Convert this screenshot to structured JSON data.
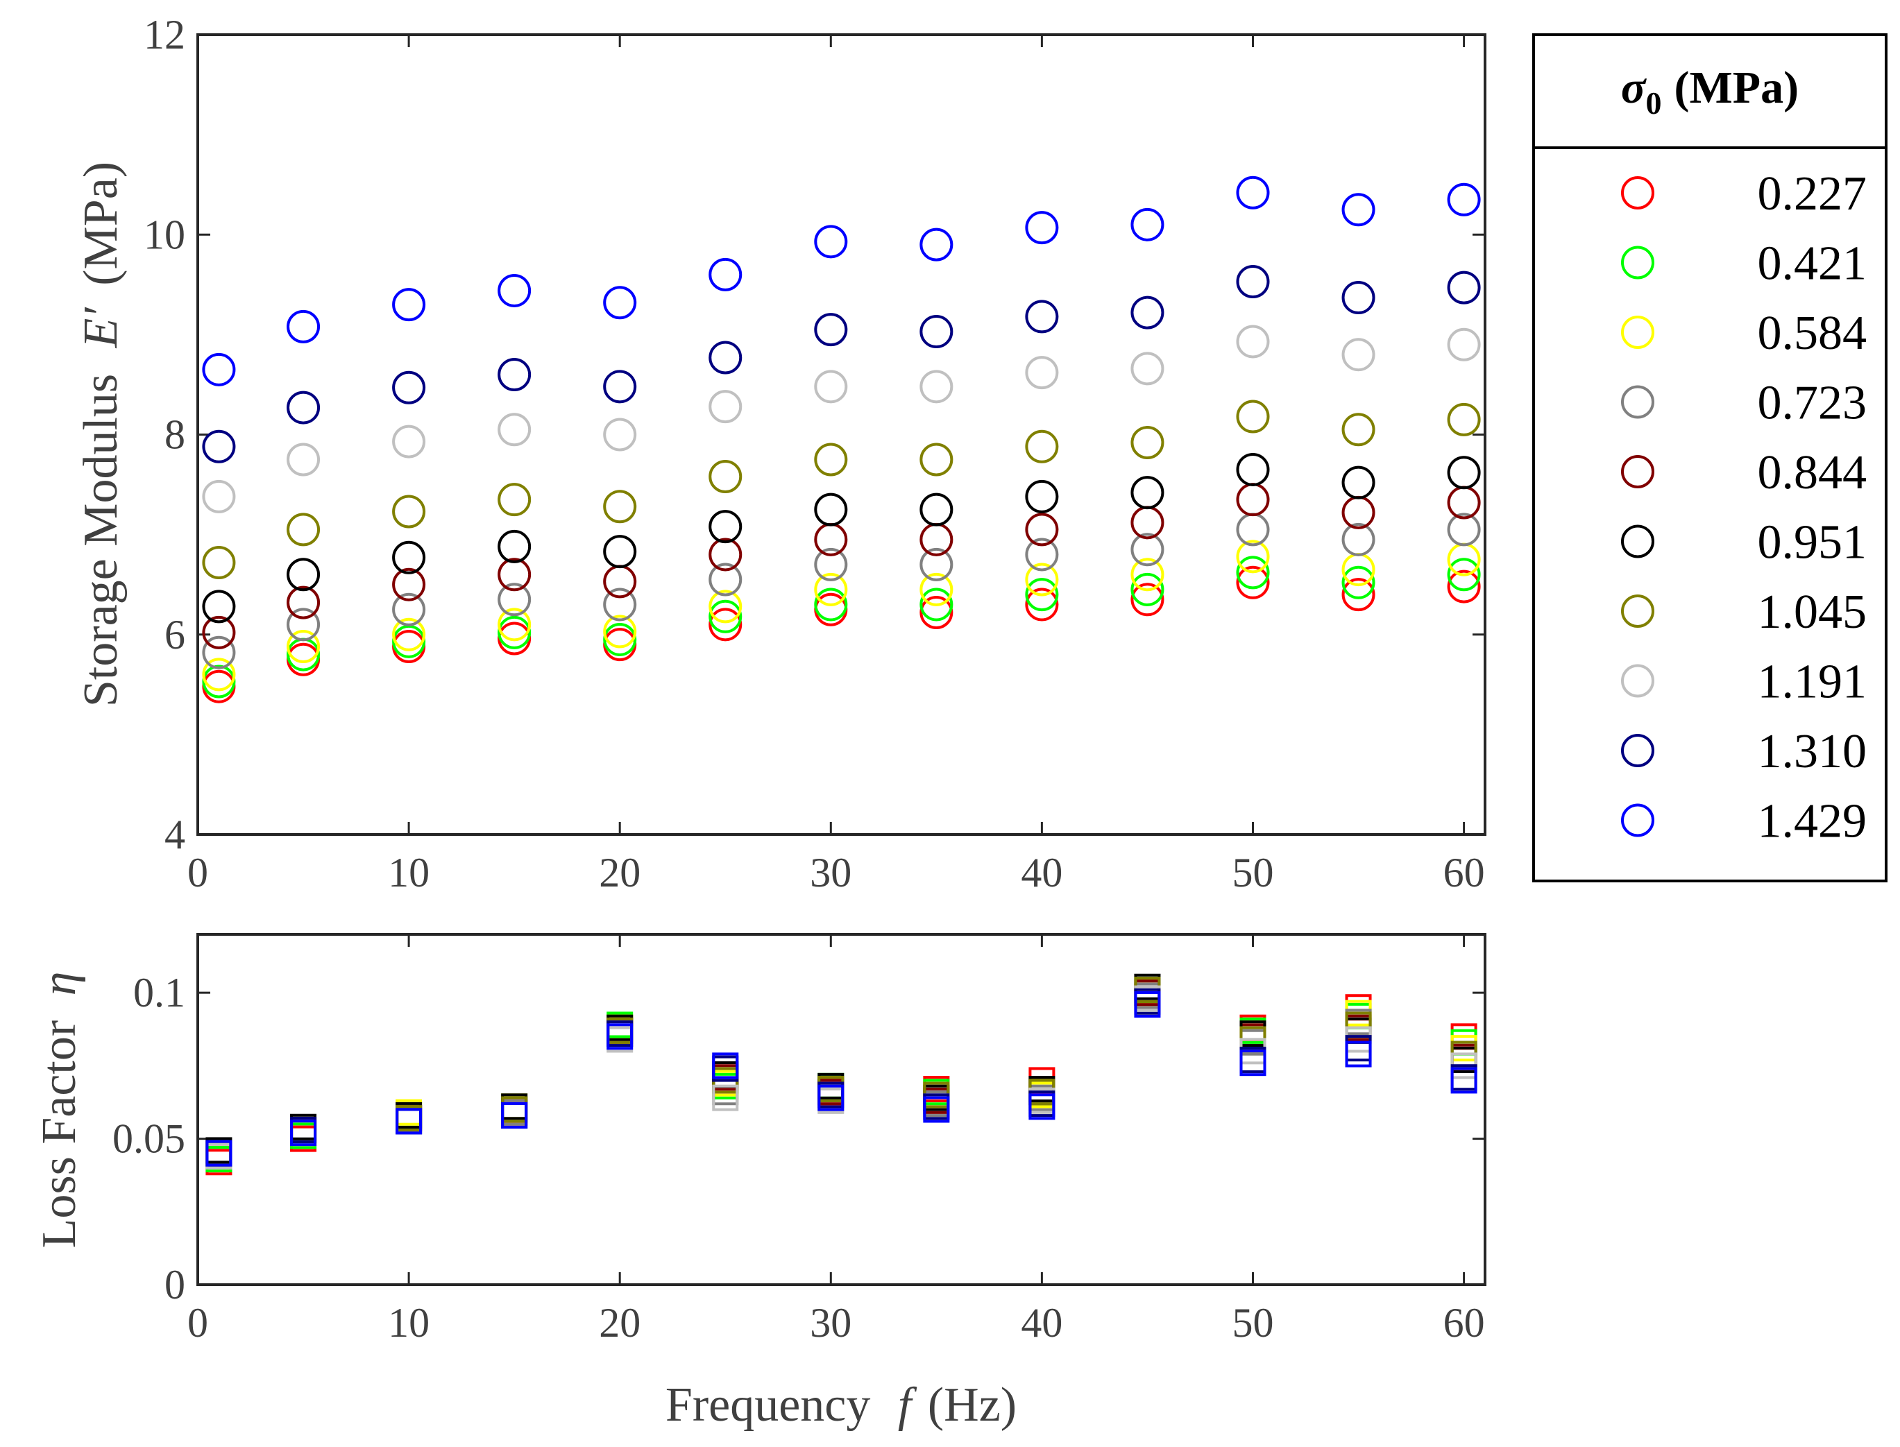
{
  "chart_data": [
    {
      "type": "scatter",
      "panel": "storage-modulus",
      "ylabel_parts": [
        "Storage Modulus",
        "E",
        "′",
        "(MPa)"
      ],
      "xlim": [
        0,
        61
      ],
      "ylim": [
        4,
        12
      ],
      "xticks": [
        0,
        10,
        20,
        30,
        40,
        50,
        60
      ],
      "yticks": [
        4,
        6,
        8,
        10,
        12
      ],
      "marker": "circle",
      "x": [
        1,
        5,
        10,
        15,
        20,
        25,
        30,
        35,
        40,
        45,
        50,
        55,
        60
      ],
      "series": [
        {
          "name": "0.227",
          "color": "#ff0000",
          "values": [
            5.48,
            5.75,
            5.88,
            5.96,
            5.9,
            6.1,
            6.25,
            6.22,
            6.3,
            6.35,
            6.52,
            6.4,
            6.48
          ]
        },
        {
          "name": "0.421",
          "color": "#00ff00",
          "values": [
            5.53,
            5.8,
            5.93,
            6.02,
            5.95,
            6.18,
            6.3,
            6.3,
            6.4,
            6.45,
            6.62,
            6.52,
            6.6
          ]
        },
        {
          "name": "0.584",
          "color": "#ffff00",
          "values": [
            5.6,
            5.88,
            6.0,
            6.1,
            6.03,
            6.28,
            6.45,
            6.45,
            6.55,
            6.6,
            6.78,
            6.65,
            6.75
          ]
        },
        {
          "name": "0.723",
          "color": "#808080",
          "values": [
            5.82,
            6.1,
            6.25,
            6.35,
            6.3,
            6.55,
            6.7,
            6.7,
            6.8,
            6.85,
            7.05,
            6.95,
            7.05
          ]
        },
        {
          "name": "0.844",
          "color": "#800000",
          "values": [
            6.02,
            6.32,
            6.5,
            6.6,
            6.53,
            6.8,
            6.95,
            6.95,
            7.05,
            7.12,
            7.35,
            7.22,
            7.32
          ]
        },
        {
          "name": "0.951",
          "color": "#000000",
          "values": [
            6.28,
            6.6,
            6.77,
            6.88,
            6.83,
            7.08,
            7.25,
            7.25,
            7.38,
            7.42,
            7.65,
            7.52,
            7.62
          ]
        },
        {
          "name": "1.045",
          "color": "#808000",
          "values": [
            6.72,
            7.05,
            7.23,
            7.35,
            7.28,
            7.58,
            7.75,
            7.75,
            7.88,
            7.92,
            8.18,
            8.05,
            8.15
          ]
        },
        {
          "name": "1.191",
          "color": "#c0c0c0",
          "values": [
            7.38,
            7.75,
            7.93,
            8.05,
            8.0,
            8.28,
            8.48,
            8.48,
            8.62,
            8.66,
            8.93,
            8.8,
            8.9
          ]
        },
        {
          "name": "1.310",
          "color": "#000080",
          "values": [
            7.88,
            8.27,
            8.47,
            8.6,
            8.48,
            8.77,
            9.05,
            9.03,
            9.18,
            9.22,
            9.53,
            9.37,
            9.47
          ]
        },
        {
          "name": "1.429",
          "color": "#0000ff",
          "values": [
            8.65,
            9.08,
            9.3,
            9.44,
            9.32,
            9.6,
            9.93,
            9.9,
            10.07,
            10.1,
            10.42,
            10.25,
            10.35
          ]
        }
      ]
    },
    {
      "type": "scatter",
      "panel": "loss-factor",
      "ylabel_parts": [
        "Loss Factor",
        "η"
      ],
      "xlabel_parts": [
        "Frequency",
        "f",
        "(Hz)"
      ],
      "xlim": [
        0,
        61
      ],
      "ylim": [
        0,
        0.12
      ],
      "xticks": [
        0,
        10,
        20,
        30,
        40,
        50,
        60
      ],
      "yticks": [
        0,
        0.05,
        0.1
      ],
      "ytick_labels": [
        "0",
        "0.05",
        "0.1"
      ],
      "marker": "square",
      "x": [
        1,
        5,
        10,
        15,
        20,
        25,
        30,
        35,
        40,
        45,
        50,
        55,
        60
      ],
      "series": [
        {
          "name": "0.227",
          "color": "#ff0000",
          "values": [
            0.042,
            0.05,
            0.057,
            0.059,
            0.088,
            0.07,
            0.066,
            0.067,
            0.07,
            0.1,
            0.088,
            0.095,
            0.085
          ]
        },
        {
          "name": "0.421",
          "color": "#00ff00",
          "values": [
            0.043,
            0.051,
            0.058,
            0.06,
            0.089,
            0.068,
            0.068,
            0.066,
            0.066,
            0.101,
            0.087,
            0.092,
            0.083
          ]
        },
        {
          "name": "0.584",
          "color": "#ffff00",
          "values": [
            0.044,
            0.052,
            0.059,
            0.061,
            0.088,
            0.069,
            0.067,
            0.065,
            0.065,
            0.1,
            0.086,
            0.093,
            0.081
          ]
        },
        {
          "name": "0.723",
          "color": "#808080",
          "values": [
            0.045,
            0.053,
            0.056,
            0.059,
            0.086,
            0.066,
            0.064,
            0.062,
            0.064,
            0.099,
            0.083,
            0.09,
            0.079
          ]
        },
        {
          "name": "0.844",
          "color": "#800000",
          "values": [
            0.045,
            0.053,
            0.057,
            0.06,
            0.087,
            0.071,
            0.066,
            0.063,
            0.066,
            0.1,
            0.085,
            0.088,
            0.078
          ]
        },
        {
          "name": "0.951",
          "color": "#000000",
          "values": [
            0.046,
            0.054,
            0.058,
            0.061,
            0.088,
            0.072,
            0.068,
            0.064,
            0.067,
            0.102,
            0.086,
            0.087,
            0.077
          ]
        },
        {
          "name": "1.045",
          "color": "#808000",
          "values": [
            0.045,
            0.053,
            0.057,
            0.06,
            0.087,
            0.07,
            0.067,
            0.065,
            0.066,
            0.101,
            0.084,
            0.089,
            0.079
          ]
        },
        {
          "name": "1.191",
          "color": "#c0c0c0",
          "values": [
            0.044,
            0.052,
            0.056,
            0.058,
            0.084,
            0.064,
            0.063,
            0.061,
            0.063,
            0.098,
            0.08,
            0.084,
            0.075
          ]
        },
        {
          "name": "1.310",
          "color": "#000080",
          "values": [
            0.045,
            0.053,
            0.056,
            0.058,
            0.086,
            0.074,
            0.065,
            0.061,
            0.062,
            0.097,
            0.077,
            0.081,
            0.071
          ]
        },
        {
          "name": "1.429",
          "color": "#0000ff",
          "values": [
            0.045,
            0.052,
            0.056,
            0.058,
            0.085,
            0.075,
            0.064,
            0.06,
            0.061,
            0.096,
            0.076,
            0.079,
            0.07
          ]
        }
      ]
    }
  ],
  "legend": {
    "title_symbol": "σ",
    "title_subscript": "0",
    "title_unit": "(MPa)",
    "placement": "right",
    "entries": [
      {
        "label": "0.227",
        "color": "#ff0000"
      },
      {
        "label": "0.421",
        "color": "#00ff00"
      },
      {
        "label": "0.584",
        "color": "#ffff00"
      },
      {
        "label": "0.723",
        "color": "#808080"
      },
      {
        "label": "0.844",
        "color": "#800000"
      },
      {
        "label": "0.951",
        "color": "#000000"
      },
      {
        "label": "1.045",
        "color": "#808000"
      },
      {
        "label": "1.191",
        "color": "#c0c0c0"
      },
      {
        "label": "1.310",
        "color": "#000080"
      },
      {
        "label": "1.429",
        "color": "#0000ff"
      }
    ]
  }
}
